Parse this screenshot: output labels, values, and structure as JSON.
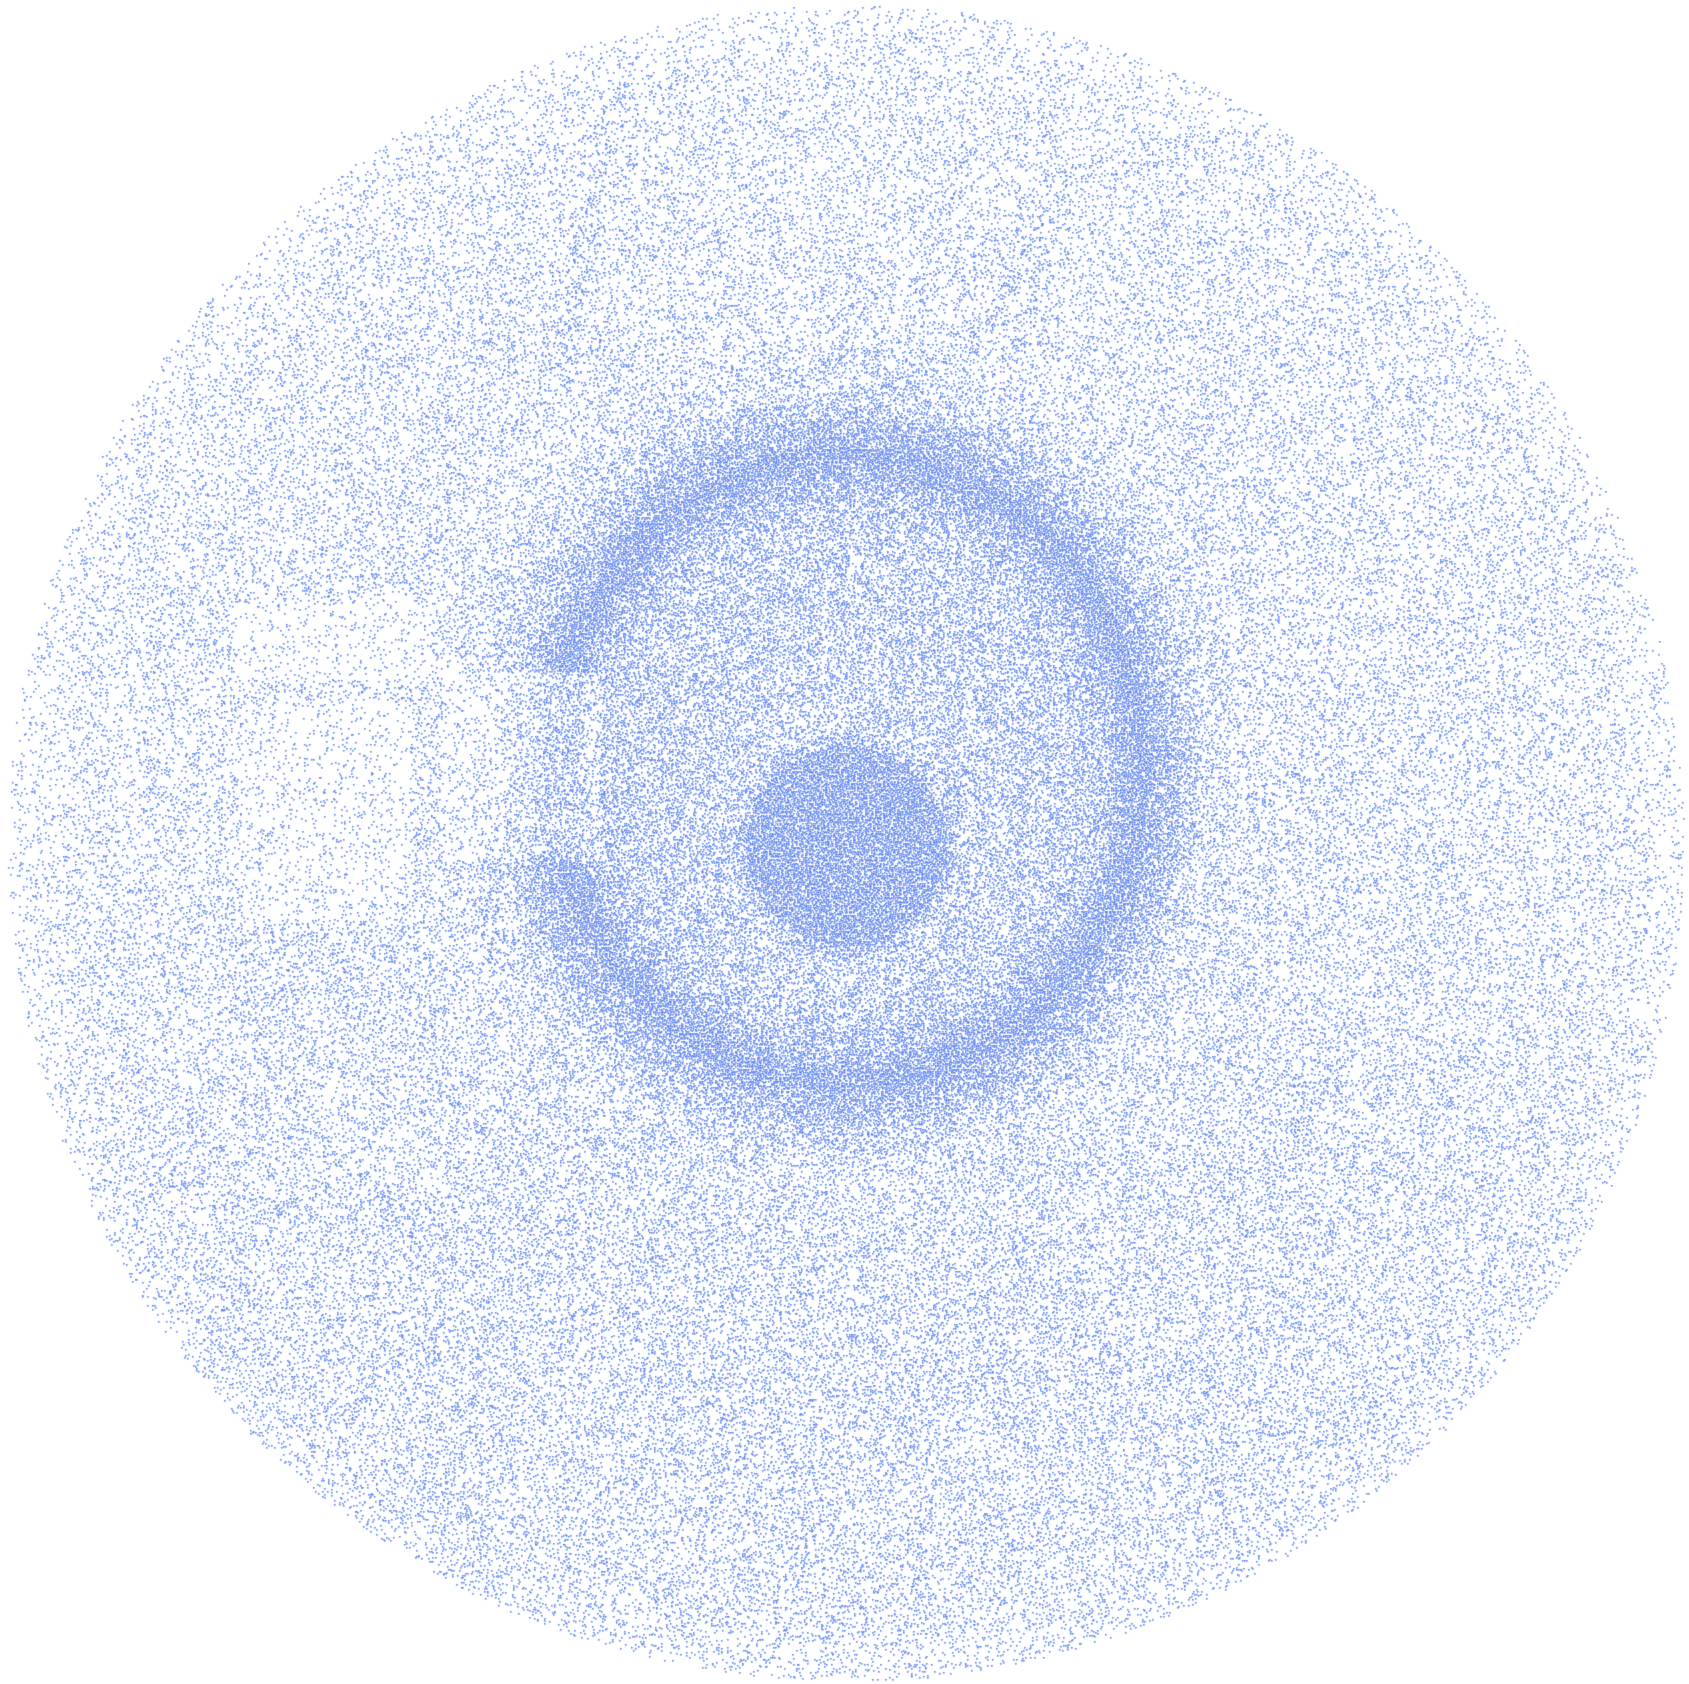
{
  "image": {
    "subject": "stippled-eye",
    "colors": {
      "background": "#ffffff",
      "dot": "#5b84ec",
      "dot_dark": "#4d78e8"
    }
  }
}
